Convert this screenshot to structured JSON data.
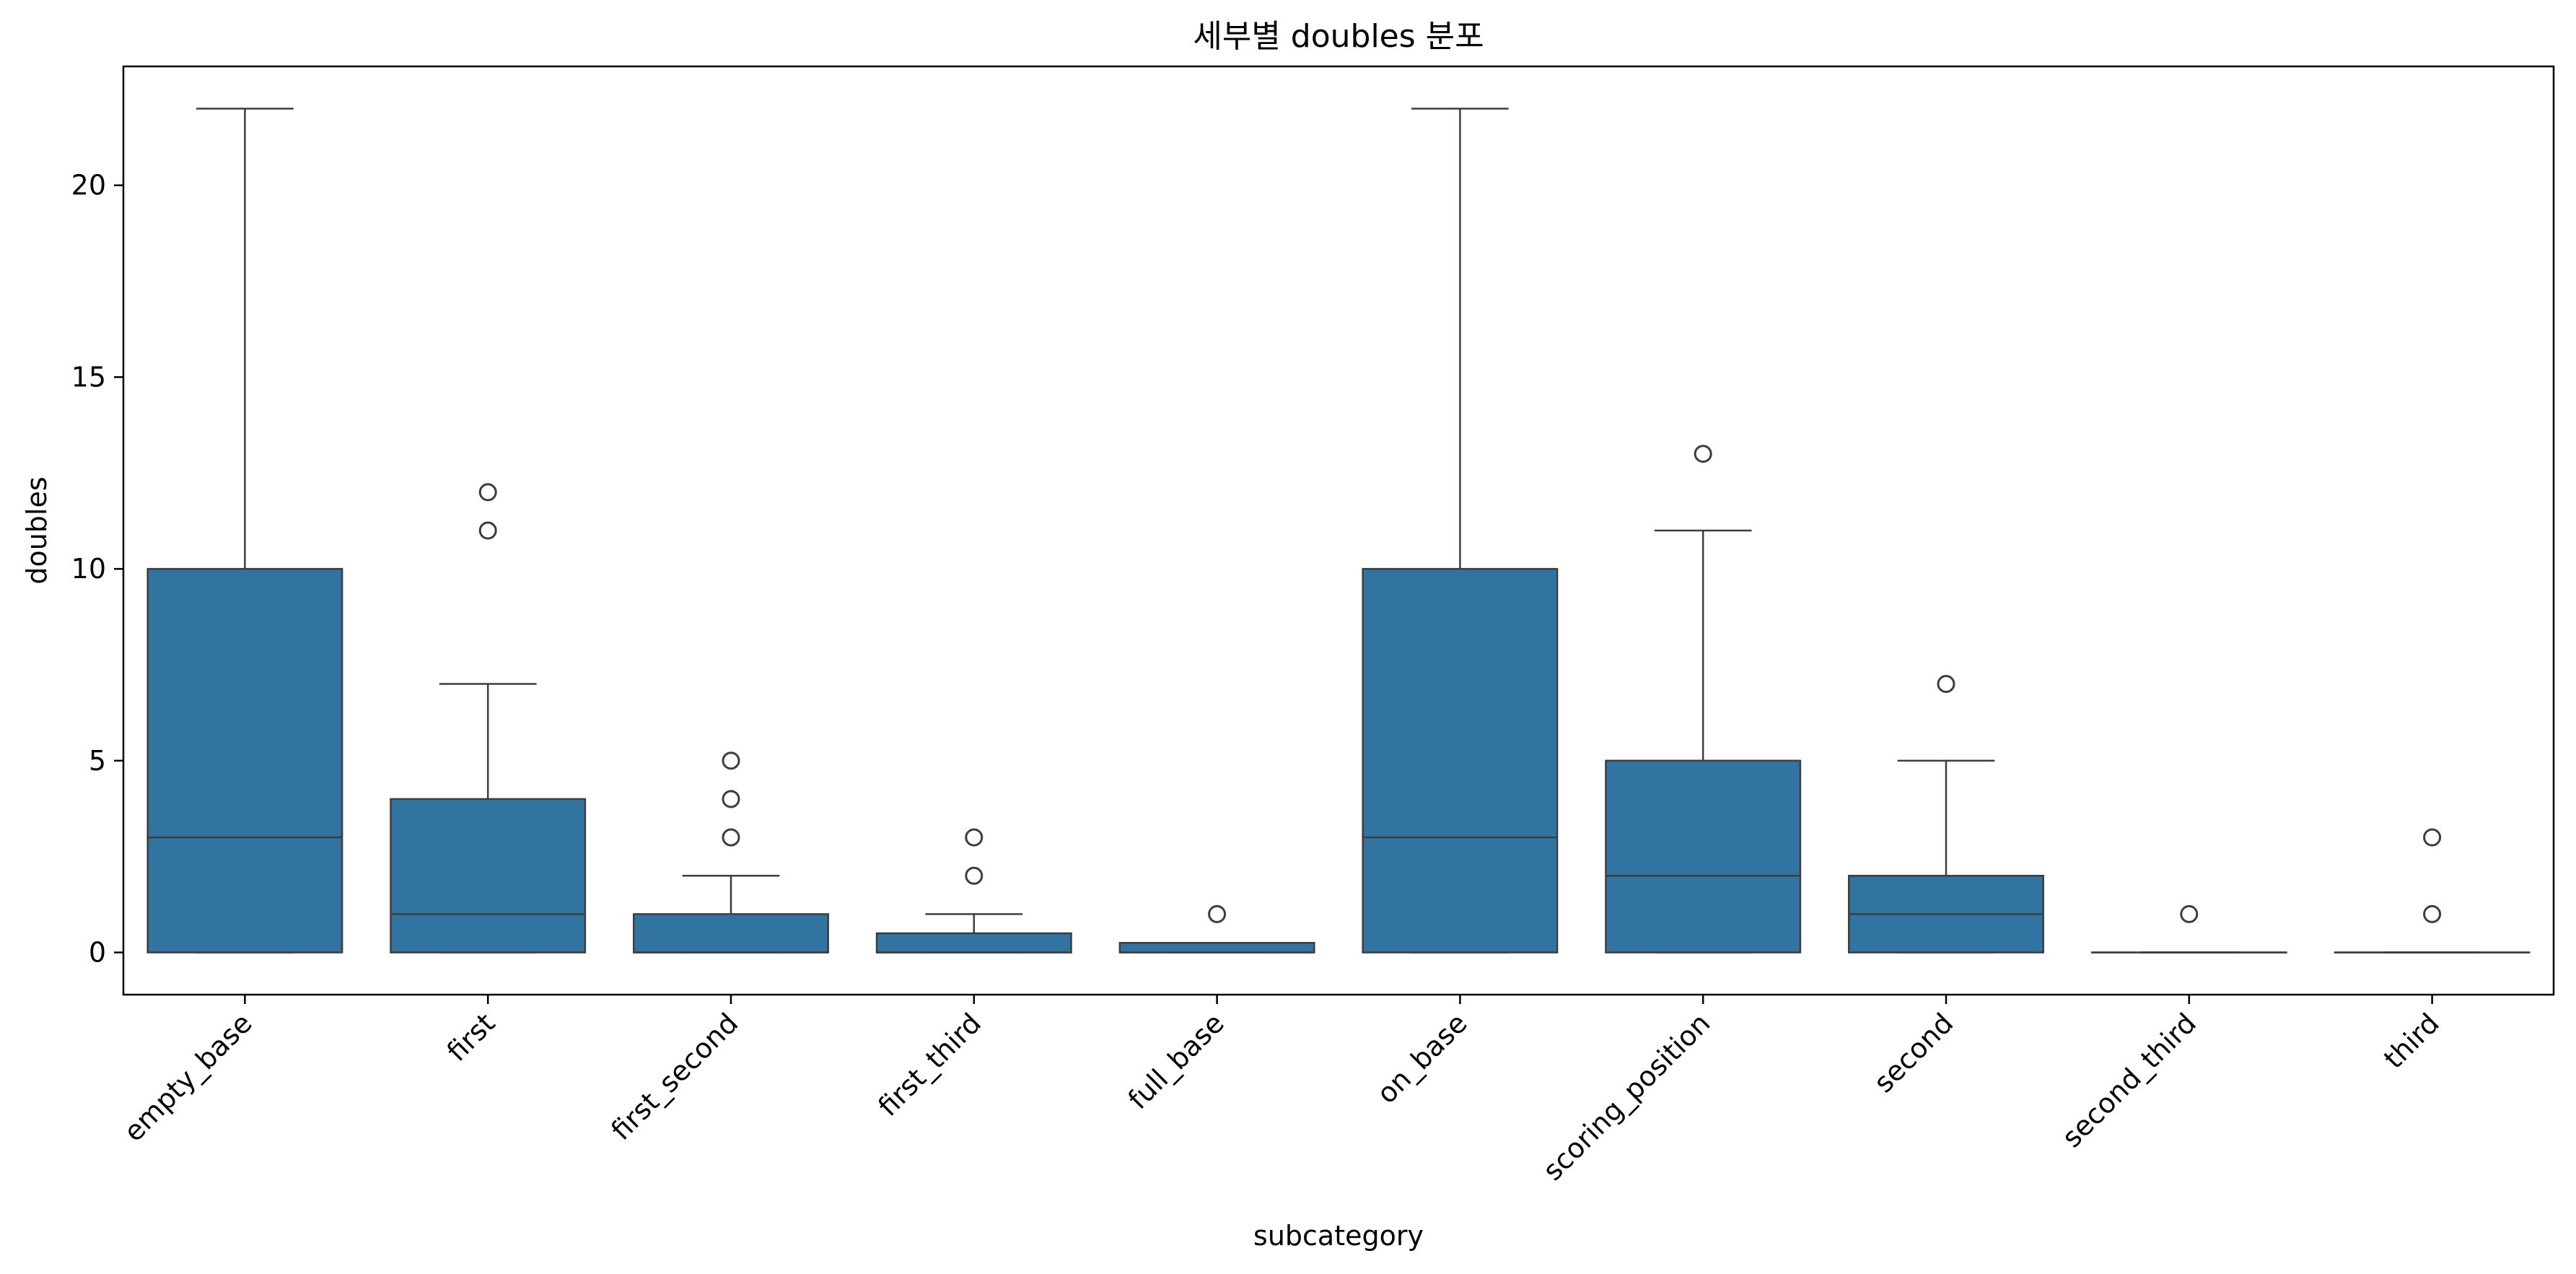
{
  "colors": {
    "box_fill": "#3274a1",
    "line": "#3d3d3d",
    "background": "#ffffff"
  },
  "chart_data": {
    "type": "box",
    "title": "세부별 doubles 분포",
    "xlabel": "subcategory",
    "ylabel": "doubles",
    "ylim": [
      -1.1,
      23.1
    ],
    "yticks": [
      0,
      5,
      10,
      15,
      20
    ],
    "grid": false,
    "categories": [
      "empty_base",
      "first",
      "first_second",
      "first_third",
      "full_base",
      "on_base",
      "scoring_position",
      "second",
      "second_third",
      "third"
    ],
    "boxes": [
      {
        "category": "empty_base",
        "whisker_low": 0,
        "q1": 0,
        "median": 3,
        "q3": 10,
        "whisker_high": 22,
        "outliers": []
      },
      {
        "category": "first",
        "whisker_low": 0,
        "q1": 0,
        "median": 1,
        "q3": 4,
        "whisker_high": 7,
        "outliers": [
          11,
          12
        ]
      },
      {
        "category": "first_second",
        "whisker_low": 0,
        "q1": 0,
        "median": 0,
        "q3": 1,
        "whisker_high": 2,
        "outliers": [
          3,
          4,
          5
        ]
      },
      {
        "category": "first_third",
        "whisker_low": 0,
        "q1": 0,
        "median": 0,
        "q3": 0.5,
        "whisker_high": 1,
        "outliers": [
          2,
          3
        ]
      },
      {
        "category": "full_base",
        "whisker_low": 0,
        "q1": 0,
        "median": 0,
        "q3": 0.25,
        "whisker_high": 0.25,
        "outliers": [
          1
        ]
      },
      {
        "category": "on_base",
        "whisker_low": 0,
        "q1": 0,
        "median": 3,
        "q3": 10,
        "whisker_high": 22,
        "outliers": []
      },
      {
        "category": "scoring_position",
        "whisker_low": 0,
        "q1": 0,
        "median": 2,
        "q3": 5,
        "whisker_high": 11,
        "outliers": [
          13
        ]
      },
      {
        "category": "second",
        "whisker_low": 0,
        "q1": 0,
        "median": 1,
        "q3": 2,
        "whisker_high": 5,
        "outliers": [
          7
        ]
      },
      {
        "category": "second_third",
        "whisker_low": 0,
        "q1": 0,
        "median": 0,
        "q3": 0,
        "whisker_high": 0,
        "outliers": [
          1
        ]
      },
      {
        "category": "third",
        "whisker_low": 0,
        "q1": 0,
        "median": 0,
        "q3": 0,
        "whisker_high": 0,
        "outliers": [
          1,
          3
        ]
      }
    ]
  }
}
